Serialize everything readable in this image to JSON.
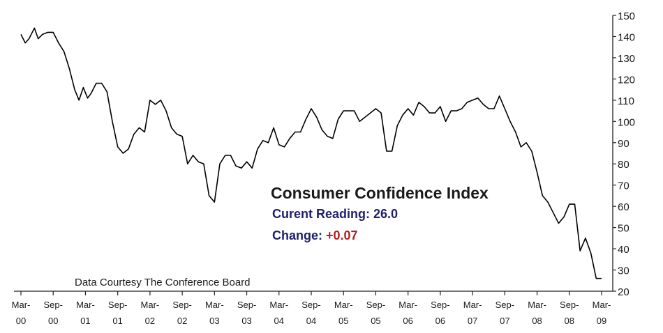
{
  "chart_data": {
    "type": "line",
    "title": "Consumer Confidence Index",
    "annotations": {
      "reading_label": "Curent Reading:",
      "reading_value": "26.0",
      "change_label": "Change:",
      "change_value": "+0.07",
      "source": "Data Courtesy The Conference Board"
    },
    "ylim": [
      20,
      150
    ],
    "yticks": [
      20,
      30,
      40,
      50,
      60,
      70,
      80,
      90,
      100,
      110,
      120,
      130,
      140,
      150
    ],
    "y_axis_side": "right",
    "xlim": [
      0,
      108
    ],
    "xticks": [
      {
        "pos": 0,
        "line1": "Mar-",
        "line2": "00"
      },
      {
        "pos": 6,
        "line1": "Sep-",
        "line2": "00"
      },
      {
        "pos": 12,
        "line1": "Mar-",
        "line2": "01"
      },
      {
        "pos": 18,
        "line1": "Sep-",
        "line2": "01"
      },
      {
        "pos": 24,
        "line1": "Mar-",
        "line2": "02"
      },
      {
        "pos": 30,
        "line1": "Sep-",
        "line2": "02"
      },
      {
        "pos": 36,
        "line1": "Mar-",
        "line2": "03"
      },
      {
        "pos": 42,
        "line1": "Sep-",
        "line2": "03"
      },
      {
        "pos": 48,
        "line1": "Mar-",
        "line2": "04"
      },
      {
        "pos": 54,
        "line1": "Sep-",
        "line2": "04"
      },
      {
        "pos": 60,
        "line1": "Mar-",
        "line2": "05"
      },
      {
        "pos": 66,
        "line1": "Sep-",
        "line2": "05"
      },
      {
        "pos": 72,
        "line1": "Mar-",
        "line2": "06"
      },
      {
        "pos": 78,
        "line1": "Sep-",
        "line2": "06"
      },
      {
        "pos": 84,
        "line1": "Mar-",
        "line2": "07"
      },
      {
        "pos": 90,
        "line1": "Sep-",
        "line2": "07"
      },
      {
        "pos": 96,
        "line1": "Mar-",
        "line2": "08"
      },
      {
        "pos": 102,
        "line1": "Sep-",
        "line2": "08"
      },
      {
        "pos": 108,
        "line1": "Mar-",
        "line2": "09"
      }
    ],
    "series": [
      {
        "line_color": "#000000",
        "points": [
          [
            0,
            141
          ],
          [
            0.8,
            137
          ],
          [
            1.5,
            139
          ],
          [
            2.5,
            144
          ],
          [
            3.2,
            139
          ],
          [
            4,
            141
          ],
          [
            5,
            142
          ],
          [
            6,
            142
          ],
          [
            7,
            137
          ],
          [
            8,
            133
          ],
          [
            9,
            125
          ],
          [
            10,
            115
          ],
          [
            10.8,
            110
          ],
          [
            11.6,
            116
          ],
          [
            12.4,
            111
          ],
          [
            13,
            113
          ],
          [
            14,
            118
          ],
          [
            15,
            118
          ],
          [
            16,
            114
          ],
          [
            17,
            100
          ],
          [
            18,
            88
          ],
          [
            19,
            85
          ],
          [
            20,
            87
          ],
          [
            21,
            94
          ],
          [
            22,
            97
          ],
          [
            23,
            95
          ],
          [
            24,
            110
          ],
          [
            25,
            108
          ],
          [
            26,
            110
          ],
          [
            27,
            105
          ],
          [
            28,
            97
          ],
          [
            29,
            94
          ],
          [
            30,
            93
          ],
          [
            31,
            80
          ],
          [
            32,
            84
          ],
          [
            33,
            81
          ],
          [
            34,
            80
          ],
          [
            35,
            65
          ],
          [
            36,
            62
          ],
          [
            37,
            80
          ],
          [
            38,
            84
          ],
          [
            39,
            84
          ],
          [
            40,
            79
          ],
          [
            41,
            78
          ],
          [
            42,
            81
          ],
          [
            43,
            78
          ],
          [
            44,
            87
          ],
          [
            45,
            91
          ],
          [
            46,
            90
          ],
          [
            47,
            97
          ],
          [
            48,
            89
          ],
          [
            49,
            88
          ],
          [
            50,
            92
          ],
          [
            51,
            95
          ],
          [
            52,
            95
          ],
          [
            53,
            101
          ],
          [
            54,
            106
          ],
          [
            55,
            102
          ],
          [
            56,
            96
          ],
          [
            57,
            93
          ],
          [
            58,
            92
          ],
          [
            59,
            101
          ],
          [
            60,
            105
          ],
          [
            61,
            105
          ],
          [
            62,
            105
          ],
          [
            63,
            100
          ],
          [
            64,
            102
          ],
          [
            65,
            104
          ],
          [
            66,
            106
          ],
          [
            67,
            104
          ],
          [
            68,
            86
          ],
          [
            69,
            86
          ],
          [
            70,
            98
          ],
          [
            71,
            103
          ],
          [
            72,
            106
          ],
          [
            73,
            103
          ],
          [
            74,
            109
          ],
          [
            75,
            107
          ],
          [
            76,
            104
          ],
          [
            77,
            104
          ],
          [
            78,
            107
          ],
          [
            79,
            100
          ],
          [
            80,
            105
          ],
          [
            81,
            105
          ],
          [
            82,
            106
          ],
          [
            83,
            109
          ],
          [
            84,
            110
          ],
          [
            85,
            111
          ],
          [
            86,
            108
          ],
          [
            87,
            106
          ],
          [
            88,
            106
          ],
          [
            89,
            112
          ],
          [
            90,
            106
          ],
          [
            91,
            100
          ],
          [
            92,
            95
          ],
          [
            93,
            88
          ],
          [
            94,
            90
          ],
          [
            95,
            86
          ],
          [
            96,
            76
          ],
          [
            97,
            65
          ],
          [
            98,
            62
          ],
          [
            99,
            57
          ],
          [
            100,
            52
          ],
          [
            101,
            55
          ],
          [
            102,
            61
          ],
          [
            103,
            61
          ],
          [
            104,
            39
          ],
          [
            105,
            45
          ],
          [
            106,
            38
          ],
          [
            107,
            26
          ],
          [
            108,
            26
          ]
        ]
      }
    ]
  }
}
